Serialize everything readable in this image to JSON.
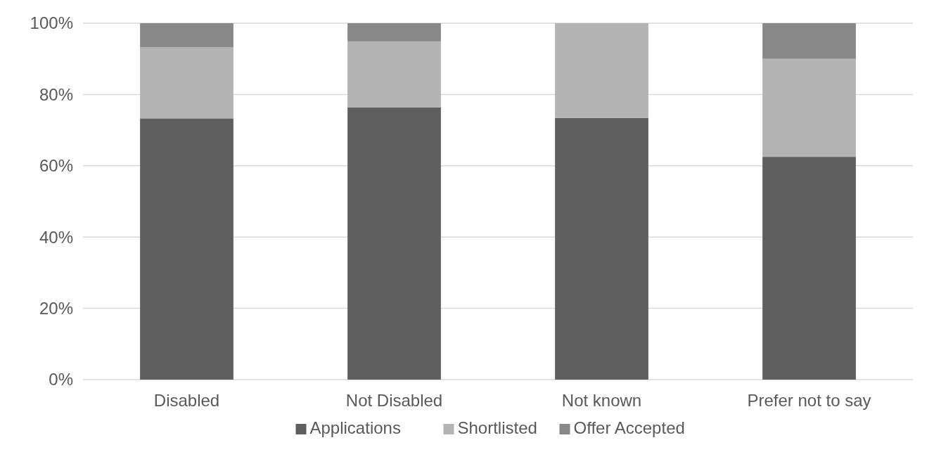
{
  "chart_data": {
    "type": "bar",
    "stacked": true,
    "categories": [
      "Disabled",
      "Not Disabled",
      "Not known",
      "Prefer not to say"
    ],
    "series": [
      {
        "name": "Applications",
        "color": "#5f5f5f",
        "values": [
          73.3,
          76.4,
          73.4,
          62.5
        ]
      },
      {
        "name": "Shortlisted",
        "color": "#b3b3b3",
        "values": [
          20,
          18.5,
          26.6,
          27.5
        ]
      },
      {
        "name": "Offer Accepted",
        "color": "#888888",
        "values": [
          6.7,
          5.1,
          0,
          10
        ]
      }
    ],
    "ylim": [
      0,
      100
    ],
    "yticks": [
      {
        "value": 0,
        "label": "0%"
      },
      {
        "value": 20,
        "label": "20%"
      },
      {
        "value": 40,
        "label": "40%"
      },
      {
        "value": 60,
        "label": "60%"
      },
      {
        "value": 80,
        "label": "80%"
      },
      {
        "value": 100,
        "label": "100%"
      }
    ],
    "grid": "y",
    "legend": "bottom"
  }
}
